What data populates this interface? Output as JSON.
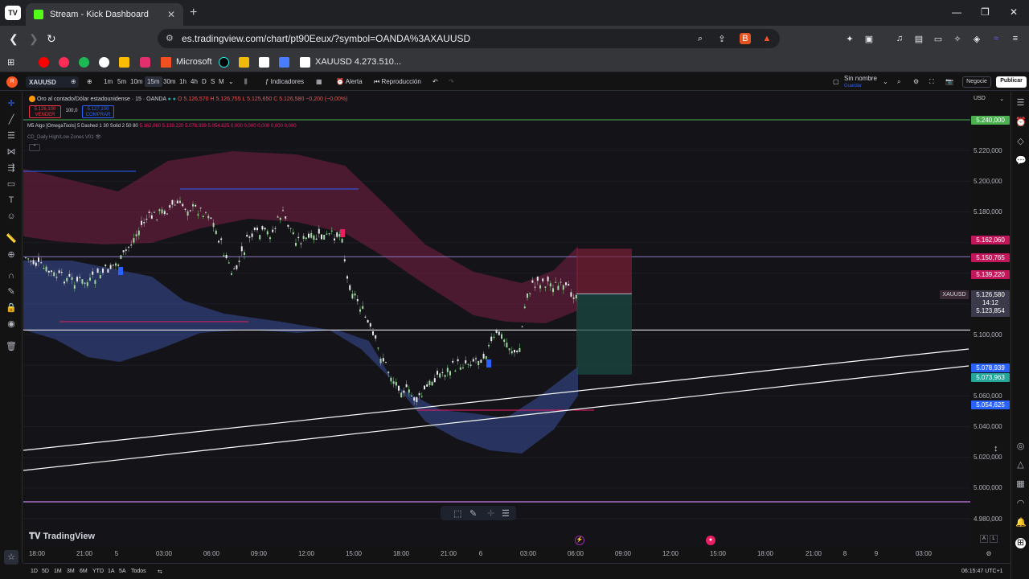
{
  "browser": {
    "tab_title": "Stream - Kick Dashboard",
    "url": "es.tradingview.com/chart/pt90Eeux/?symbol=OANDA%3AXAUUSD",
    "bookmarks": [
      "Microsoft",
      "XAUUSD 4.273.510..."
    ]
  },
  "toolbar": {
    "symbol": "XAUUSD",
    "intervals": [
      "1m",
      "5m",
      "10m",
      "15m",
      "30m",
      "1h",
      "4h",
      "D",
      "S",
      "M"
    ],
    "active_interval": "15m",
    "indicators_label": "Indicadores",
    "alert_label": "Alerta",
    "replay_label": "Reproducción",
    "layout_name": "Sin nombre",
    "layout_sub": "Guardar",
    "trade_label": "Negocie",
    "publish_label": "Publicar"
  },
  "legend": {
    "title": "Oro al contado/Dólar estadounidense · 15 · OANDA",
    "ohlc": "O 5.126,570  H 5.126,755  L 5.125,650  C 5.126,580  −0,200 (−0,00%)",
    "sell_price": "5.126,100",
    "sell_label": "VENDER",
    "spread": "100,0",
    "buy_price": "5.127,100",
    "buy_label": "COMPRAR",
    "indicator1": "M5 Algo [OmegaTools] 5 Dashed 1 30 Solid 2 50 80",
    "indicator1_values": "5.162,060  5.139,220  5.078,939  5.054,625  0,000  0,000  0,000  0,000  0,000",
    "indicator2": "CD_Daily High/Low Zones V01"
  },
  "price_axis": {
    "currency": "USD",
    "labels": [
      "5.220,000",
      "5.200,000",
      "5.180,000",
      "5.100,000",
      "5.060,000",
      "5.040,000",
      "5.020,000",
      "5.000,000",
      "4.980,000"
    ],
    "badges": [
      {
        "value": "5.240,000",
        "color": "#4caf50"
      },
      {
        "value": "5.162,060",
        "color": "#c2185b"
      },
      {
        "value": "5.150,765",
        "color": "#c2185b"
      },
      {
        "value": "5.139,220",
        "color": "#c2185b"
      },
      {
        "value": "5.078,939",
        "color": "#2962ff"
      },
      {
        "value": "5.073,963",
        "color": "#26a69a"
      },
      {
        "value": "5.054,625",
        "color": "#2962ff"
      }
    ],
    "current_price": "5.126,580",
    "countdown": "14:12",
    "current_price2": "5.123,854",
    "symbol_tag": "XAUUSD"
  },
  "time_axis": {
    "labels": [
      "18:00",
      "21:00",
      "5",
      "03:00",
      "06:00",
      "09:00",
      "12:00",
      "15:00",
      "18:00",
      "21:00",
      "6",
      "03:00",
      "06:00",
      "09:00",
      "12:00",
      "15:00",
      "18:00",
      "21:00",
      "8",
      "9",
      "03:00"
    ]
  },
  "bottom": {
    "ranges": [
      "1D",
      "5D",
      "1M",
      "3M",
      "6M",
      "YTD",
      "1A",
      "5A",
      "Todos"
    ],
    "clock": "06:15:47 UTC+1"
  },
  "brand": "TradingView",
  "chart_data": {
    "type": "candlestick",
    "symbol": "XAUUSD",
    "interval": "15",
    "ylim": [
      4980,
      5240
    ],
    "horizontal_levels": [
      5240,
      5150.765,
      5103
    ],
    "position": {
      "entry": 5126.58,
      "stop": 5150.765,
      "target": 5073.963
    }
  }
}
